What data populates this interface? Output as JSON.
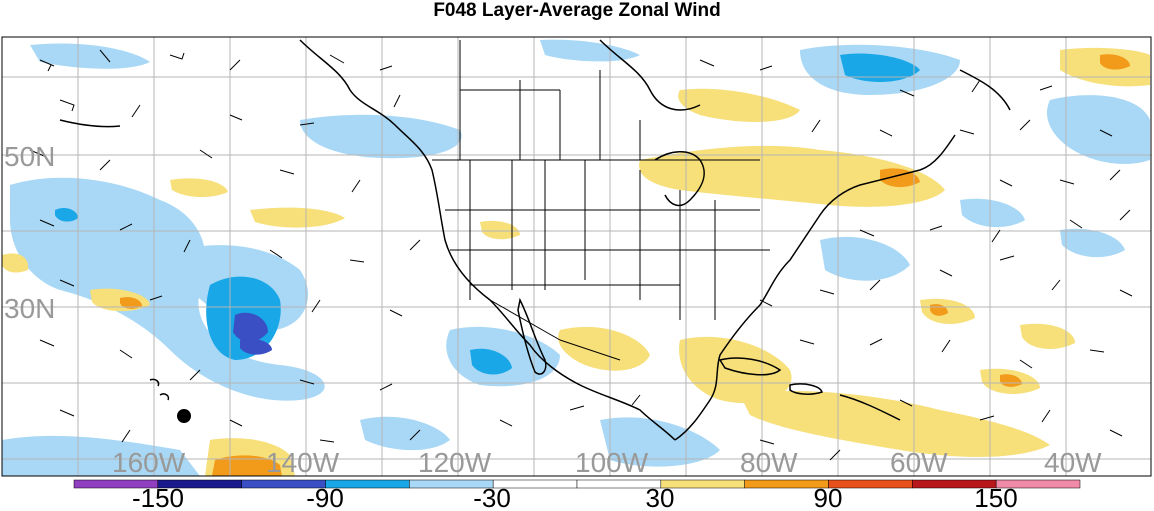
{
  "title": "F048 Layer-Average Zonal Wind",
  "map": {
    "lat_labels": [
      "50N",
      "30N"
    ],
    "lon_labels": [
      "160W",
      "140W",
      "120W",
      "100W",
      "80W",
      "60W",
      "40W"
    ]
  },
  "colorbar": {
    "labels": [
      "-150",
      "-90",
      "-30",
      "30",
      "90",
      "150"
    ],
    "colors": [
      "#8f3fbf",
      "#1a1a8c",
      "#3a4fc4",
      "#19a7e8",
      "#a8d8f5",
      "#ffffff",
      "#ffffff",
      "#f7df7a",
      "#f29a1a",
      "#e8501c",
      "#b8181c",
      "#f08aa8"
    ]
  }
}
